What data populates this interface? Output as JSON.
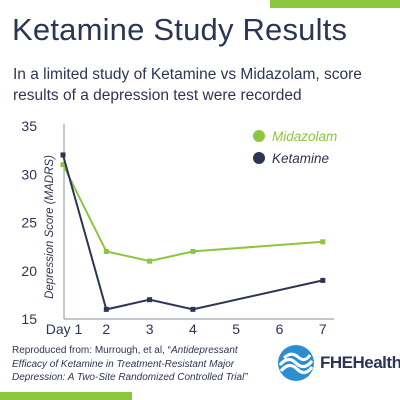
{
  "header": {
    "title": "Ketamine Study Results",
    "subtitle": "In a limited study of Ketamine vs Midazolam, score results of a depression test were recorded"
  },
  "footnote": {
    "prefix": "Reproduced from: Murrough, et al, “",
    "citation": "Antidepressant Efficacy of Ketamine in Treatment-Resistant Major Depression: A Two-Site Randomized Controlled Trial",
    "suffix": "”"
  },
  "logo": {
    "text": "FHEHealth"
  },
  "colors": {
    "accent": "#8cc63f",
    "navy": "#2e3554"
  },
  "chart_data": {
    "type": "line",
    "ylabel": "Depression Score (MADRS)",
    "xlabel": "",
    "ylim": [
      15,
      35
    ],
    "yticks": [
      15,
      20,
      25,
      30,
      35
    ],
    "categories": [
      "Day 1",
      "2",
      "3",
      "4",
      "5",
      "6",
      "7"
    ],
    "grid": false,
    "legend_position": "top-right",
    "series": [
      {
        "name": "Midazolam",
        "color": "#8cc63f",
        "x": [
          1,
          2,
          3,
          4,
          7
        ],
        "values": [
          31,
          22,
          21,
          22,
          23
        ]
      },
      {
        "name": "Ketamine",
        "color": "#2e3554",
        "x": [
          1,
          2,
          3,
          4,
          7
        ],
        "values": [
          32,
          16,
          17,
          16,
          19
        ]
      }
    ]
  }
}
